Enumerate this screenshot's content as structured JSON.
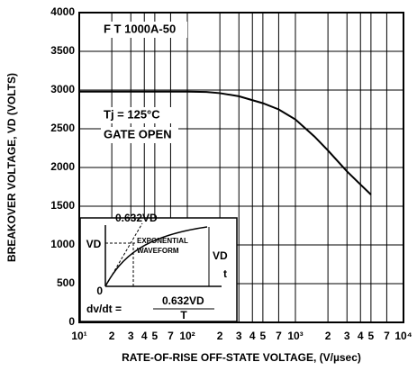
{
  "chart_data": {
    "type": "line",
    "xlabel": "RATE-OF-RISE OFF-STATE VOLTAGE, (V/µsec)",
    "ylabel": "BREAKOVER VOLTAGE, VD (VOLTS)",
    "annotations": [
      "F T 1000A-50",
      "Tj = 125°C",
      "GATE OPEN"
    ],
    "inset_labels": [
      "0.632VD",
      "VD",
      "EXPONENTIAL",
      "WAVEFORM",
      "VD",
      "t",
      "0",
      "dv/dt =",
      "0.632VD",
      "T"
    ],
    "xlog": true,
    "grid": true,
    "color": "#000000",
    "xlim": [
      10,
      10000
    ],
    "ylim": [
      0,
      4000
    ],
    "yticks": [
      0,
      500,
      1000,
      1500,
      2000,
      2500,
      3000,
      3500,
      4000
    ],
    "xticks": [
      {
        "value": 10,
        "label": "10¹"
      },
      {
        "value": 20,
        "label": "2"
      },
      {
        "value": 30,
        "label": "3"
      },
      {
        "value": 40,
        "label": "4"
      },
      {
        "value": 50,
        "label": "5"
      },
      {
        "value": 70,
        "label": "7"
      },
      {
        "value": 100,
        "label": "10²"
      },
      {
        "value": 200,
        "label": "2"
      },
      {
        "value": 300,
        "label": "3"
      },
      {
        "value": 400,
        "label": "4"
      },
      {
        "value": 500,
        "label": "5"
      },
      {
        "value": 700,
        "label": "7"
      },
      {
        "value": 1000,
        "label": "10³"
      },
      {
        "value": 2000,
        "label": "2"
      },
      {
        "value": 3000,
        "label": "3"
      },
      {
        "value": 4000,
        "label": "4"
      },
      {
        "value": 5000,
        "label": "5"
      },
      {
        "value": 7000,
        "label": "7"
      },
      {
        "value": 10000,
        "label": "10⁴"
      }
    ],
    "x": [
      10,
      100,
      150,
      200,
      300,
      500,
      700,
      1000,
      1500,
      2000,
      3000,
      4000,
      5000
    ],
    "values": [
      2980,
      2980,
      2975,
      2960,
      2920,
      2830,
      2750,
      2620,
      2400,
      2220,
      1950,
      1780,
      1650
    ]
  }
}
